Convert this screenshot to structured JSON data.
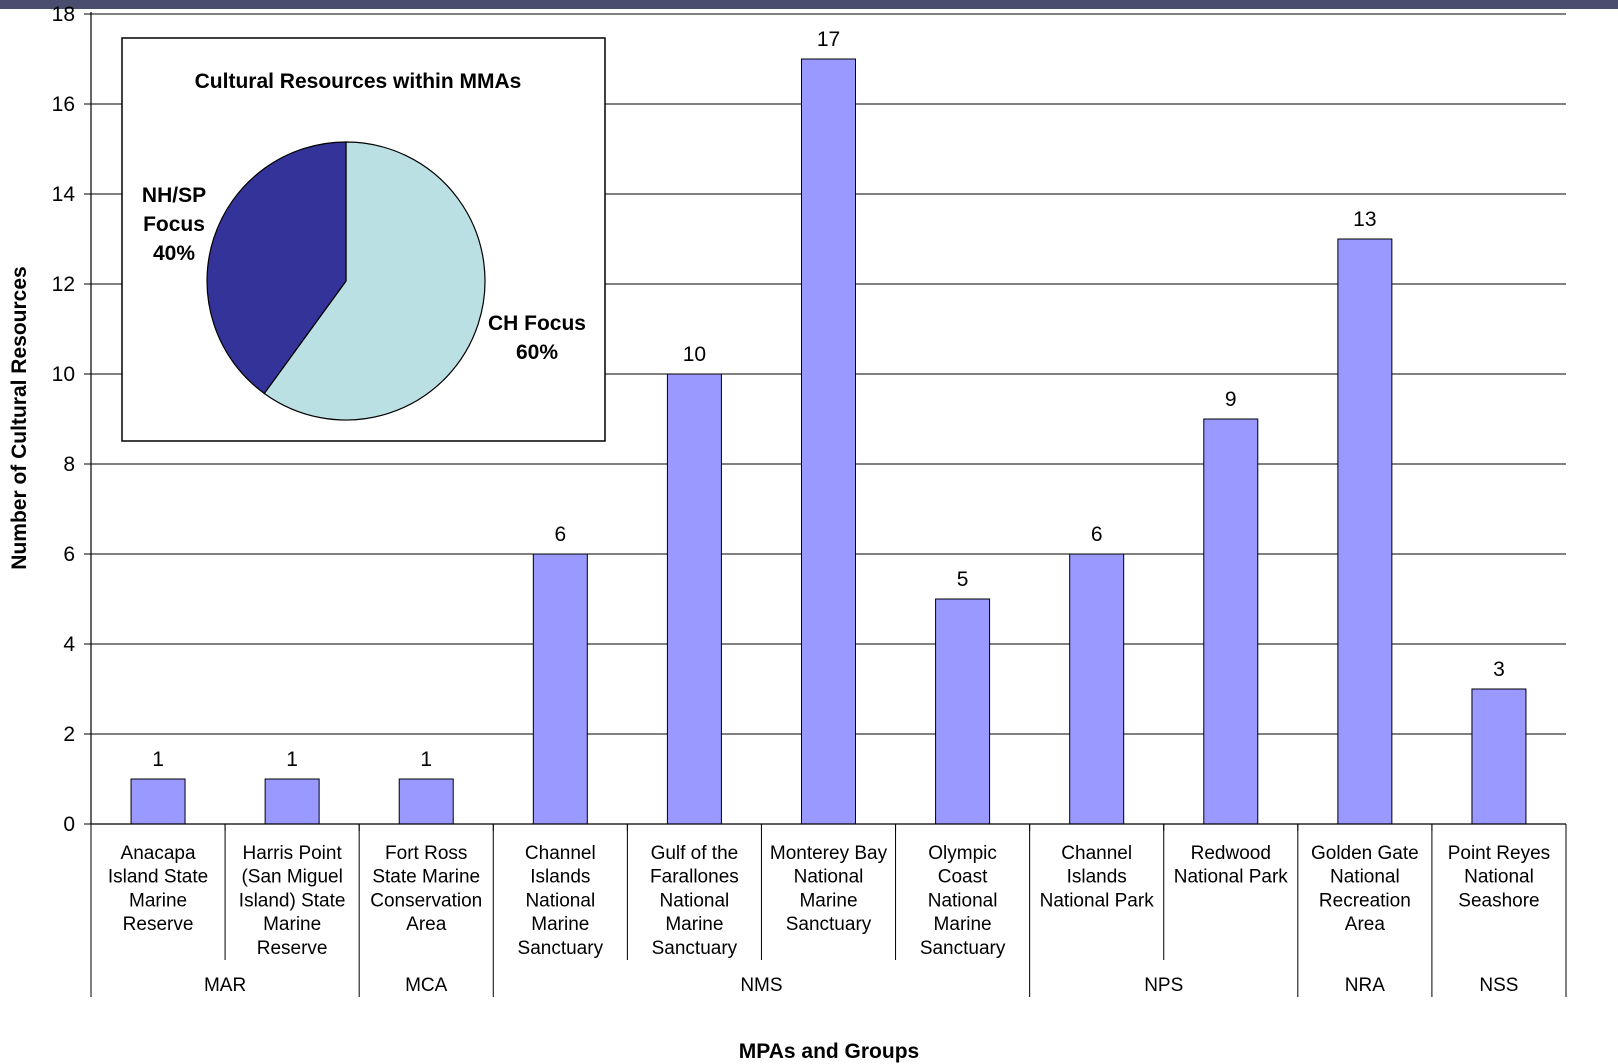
{
  "colors": {
    "top_bar": "#4a4e6e",
    "bar_fill": "#9999ff",
    "pie_dark": "#333399",
    "pie_light": "#bbe0e3"
  },
  "chart_data": [
    {
      "type": "bar",
      "title": "",
      "xlabel": "MPAs and Groups",
      "ylabel": "Number of Cultural Resources",
      "ylim": [
        0,
        18
      ],
      "yticks": [
        0,
        2,
        4,
        6,
        8,
        10,
        12,
        14,
        16,
        18
      ],
      "grid": true,
      "categories": [
        {
          "label": "Anacapa Island State Marine Reserve",
          "lines": [
            "Anacapa",
            "Island State",
            "Marine",
            "Reserve"
          ],
          "group": "MAR"
        },
        {
          "label": "Harris Point (San Miguel Island) State Marine Reserve",
          "lines": [
            "Harris Point",
            "(San Miguel",
            "Island) State",
            "Marine",
            "Reserve"
          ],
          "group": "MAR"
        },
        {
          "label": "Fort Ross State Marine Conservation Area",
          "lines": [
            "Fort Ross",
            "State Marine",
            "Conservation",
            "Area"
          ],
          "group": "MCA"
        },
        {
          "label": "Channel Islands National Marine Sanctuary",
          "lines": [
            "Channel",
            "Islands",
            "National",
            "Marine",
            "Sanctuary"
          ],
          "group": "NMS"
        },
        {
          "label": "Gulf of the Farallones National Marine Sanctuary",
          "lines": [
            "Gulf of the",
            "Farallones",
            "National",
            "Marine",
            "Sanctuary"
          ],
          "group": "NMS"
        },
        {
          "label": "Monterey Bay National Marine Sanctuary",
          "lines": [
            "Monterey Bay",
            "National",
            "Marine",
            "Sanctuary"
          ],
          "group": "NMS"
        },
        {
          "label": "Olympic Coast National Marine Sanctuary",
          "lines": [
            "Olympic",
            "Coast",
            "National",
            "Marine",
            "Sanctuary"
          ],
          "group": "NMS"
        },
        {
          "label": "Channel Islands National Park",
          "lines": [
            "Channel",
            "Islands",
            "National Park"
          ],
          "group": "NPS"
        },
        {
          "label": "Redwood National Park",
          "lines": [
            "Redwood",
            "National Park"
          ],
          "group": "NPS"
        },
        {
          "label": "Golden Gate National Recreation Area",
          "lines": [
            "Golden Gate",
            "National",
            "Recreation",
            "Area"
          ],
          "group": "NRA"
        },
        {
          "label": "Point Reyes National Seashore",
          "lines": [
            "Point Reyes",
            "National",
            "Seashore"
          ],
          "group": "NSS"
        }
      ],
      "values": [
        1,
        1,
        1,
        6,
        10,
        17,
        5,
        6,
        9,
        13,
        3
      ],
      "data_labels": [
        "1",
        "1",
        "1",
        "6",
        "10",
        "17",
        "5",
        "6",
        "9",
        "13",
        "3"
      ],
      "groups": [
        {
          "label": "MAR",
          "count": 2
        },
        {
          "label": "MCA",
          "count": 1
        },
        {
          "label": "NMS",
          "count": 4
        },
        {
          "label": "NPS",
          "count": 2
        },
        {
          "label": "NRA",
          "count": 1
        },
        {
          "label": "NSS",
          "count": 1
        }
      ]
    },
    {
      "type": "pie",
      "title": "Cultural Resources within MMAs",
      "slices": [
        {
          "label_lines": [
            "CH Focus",
            "60%"
          ],
          "value": 60,
          "color": "#bbe0e3"
        },
        {
          "label_lines": [
            "NH/SP",
            "Focus",
            "40%"
          ],
          "value": 40,
          "color": "#333399"
        }
      ]
    }
  ]
}
